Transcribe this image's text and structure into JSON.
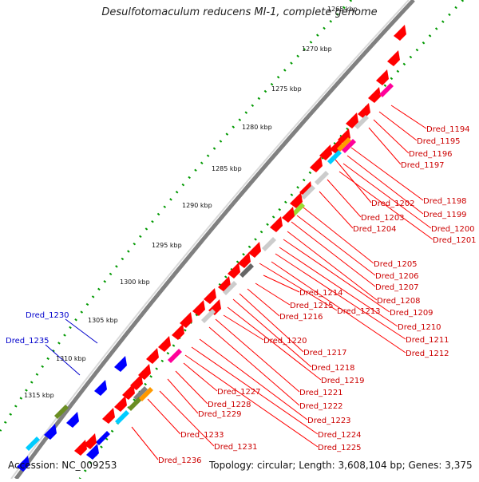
{
  "title": "Desulfotomaculum reducens MI-1, complete genome",
  "footer": {
    "accession": "Accession: NC_009253",
    "topology": "Topology: circular; Length: 3,608,104 bp; Genes: 3,375"
  },
  "colors": {
    "red": "#ff0000",
    "gray": "#808080",
    "dark_gray": "#666666",
    "light_gray": "#cccccc",
    "magenta": "#ff0099",
    "orange": "#ff9900",
    "blue": "#0000ff",
    "cyan": "#00ccff",
    "olive": "#6b8e23",
    "green": "#009900"
  },
  "scale_labels": [
    "1265 kbp",
    "1270 kbp",
    "1275 kbp",
    "1280 kbp",
    "1285 kbp",
    "1290 kbp",
    "1295 kbp",
    "1300 kbp",
    "1305 kbp",
    "1310 kbp",
    "1315 kbp"
  ],
  "gene_labels_red": [
    "Dred_1194",
    "Dred_1195",
    "Dred_1196",
    "Dred_1197",
    "Dred_1198",
    "Dred_1199",
    "Dred_1200",
    "Dred_1201",
    "Dred_1202",
    "Dred_1203",
    "Dred_1204",
    "Dred_1205",
    "Dred_1206",
    "Dred_1207",
    "Dred_1208",
    "Dred_1209",
    "Dred_1210",
    "Dred_1211",
    "Dred_1212",
    "Dred_1213",
    "Dred_1214",
    "Dred_1215",
    "Dred_1216",
    "Dred_1217",
    "Dred_1218",
    "Dred_1219",
    "Dred_1220",
    "Dred_1221",
    "Dred_1222",
    "Dred_1223",
    "Dred_1224",
    "Dred_1225",
    "Dred_1227",
    "Dred_1228",
    "Dred_1229",
    "Dred_1231",
    "Dred_1233",
    "Dred_1236"
  ],
  "gene_labels_blue": [
    "Dred_1230",
    "Dred_1235"
  ]
}
